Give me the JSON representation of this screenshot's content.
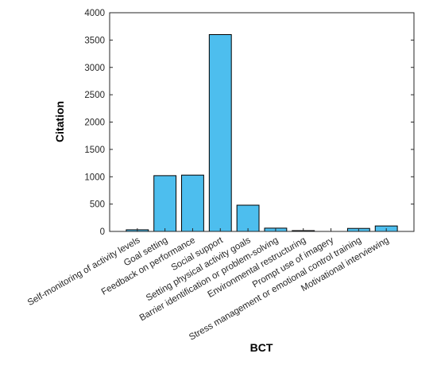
{
  "chart_data": {
    "type": "bar",
    "title": "",
    "xlabel": "BCT",
    "ylabel": "Citation",
    "ylim": [
      0,
      4000
    ],
    "yticks": [
      0,
      500,
      1000,
      1500,
      2000,
      2500,
      3000,
      3500,
      4000
    ],
    "grid": false,
    "legend": "none",
    "bar_color": "#4DBEEE",
    "edge_color": "#000000",
    "categories": [
      "Self-monitoring of activity levels",
      "Goal setting",
      "Feedback on performance",
      "Social support",
      "Setting physical activity goals",
      "Barrier identification or problem-solving",
      "Environmental restructuring",
      "Prompt use of imagery",
      "Stress management or emotional control training",
      "Motivational interviewing"
    ],
    "values": [
      30,
      1020,
      1030,
      3600,
      480,
      60,
      15,
      0,
      55,
      100
    ]
  }
}
